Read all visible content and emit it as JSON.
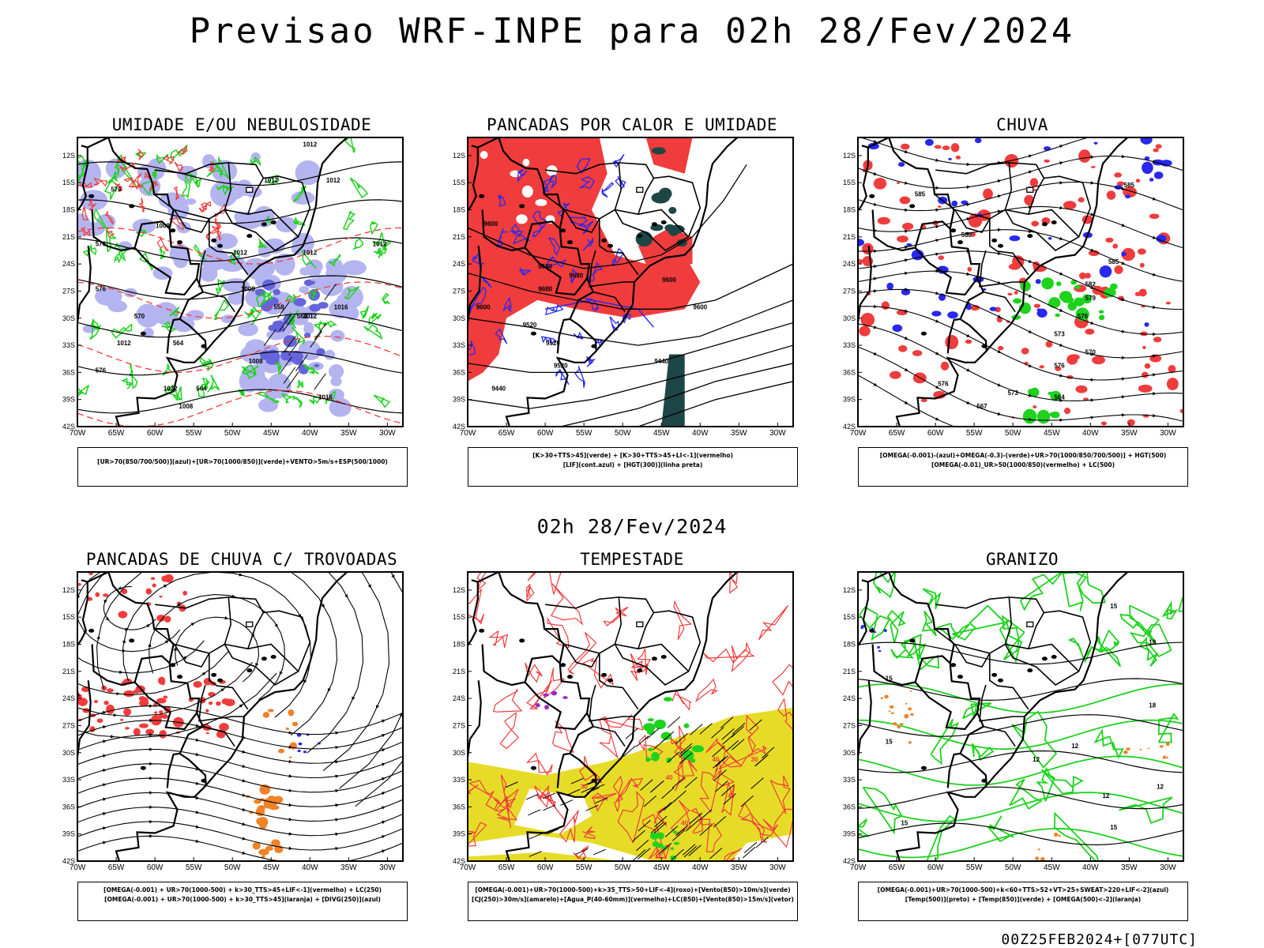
{
  "title": "Previsao WRF-INPE  para 02h 28/Fev/2024",
  "mid_title": "02h 28/Fev/2024",
  "footer": "00Z25FEB2024+[077UTC]",
  "axes": {
    "lon_labels": [
      "70W",
      "65W",
      "60W",
      "55W",
      "50W",
      "45W",
      "40W",
      "35W",
      "30W"
    ],
    "lat_labels": [
      "12S",
      "15S",
      "18S",
      "21S",
      "24S",
      "27S",
      "30S",
      "33S",
      "36S",
      "39S",
      "42S"
    ]
  },
  "colors": {
    "humidity_blue": "#b4b4f0",
    "humidity_blue_dark": "#6464dc",
    "green": "#1ed21e",
    "red": "#f03c3c",
    "blue": "#2828f0",
    "dark_teal": "#1e4646",
    "orange": "#f08228",
    "yellow": "#e6dc28",
    "purple": "#a028c8"
  },
  "panels": [
    {
      "title": "UMIDADE E/OU NEBULOSIDADE",
      "legend": [
        "[UR>70(850/700/500)](azul)+[UR>70(1000/850)](verde)+VENTO>5m/s+ESP(500/1000)"
      ],
      "contour_labels": [
        "1012",
        "1012",
        "1012",
        "1008",
        "1012",
        "1012",
        "1012",
        "1008",
        "1016",
        "1012",
        "1012",
        "1008",
        "1012",
        "1016",
        "1008",
        "576",
        "576",
        "576",
        "570",
        "564",
        "558",
        "564",
        "576",
        "564"
      ]
    },
    {
      "title": "PANCADAS POR CALOR E UMIDADE",
      "legend": [
        "[K>30+TTS>45](verde) + [K>30+TTS>45+LI<-1](vermelho)",
        "[LIF](cont.azul) + [HGT(300)](linha preta)"
      ],
      "contour_labels": [
        "9600",
        "9680",
        "9680",
        "9600",
        "9520",
        "9600",
        "9520",
        "9440",
        "9520",
        "9440",
        "9600",
        "9680"
      ]
    },
    {
      "title": "CHUVA",
      "legend": [
        "[OMEGA(-0.001)-(azul)+OMEGA(-0.3)-(verde)+UR>70(1000/850/700/500)] + HGT(500)",
        "[OMEGA(-0.01)_UR>50(1000/850)(vermelho) + LC(500)"
      ],
      "contour_labels": [
        "585",
        "585",
        "588",
        "585",
        "582",
        "579",
        "576",
        "573",
        "570",
        "576",
        "576",
        "573",
        "564",
        "567"
      ]
    },
    {
      "title": "PANCADAS DE CHUVA C/ TROVOADAS",
      "legend": [
        "[OMEGA(-0.001) + UR>70(1000-500) + k>30_TTS>45+LIF<-1](vermelho) + LC(250)",
        "[OMEGA(-0.001) + UR>70(1000-500) + k>30_TTS>45](laranja) + [DIVG(250)](azul)"
      ],
      "contour_labels": []
    },
    {
      "title": "TEMPESTADE",
      "legend": [
        "[OMEGA(-0.001)+UR>70(1000-500)+k>35_TTS>50+LIF<-4](roxo)+[Vento(850)>10m/s](verde)",
        "[CJ(250)>30m/s](amarelo)+[Agua_P(40-60mm)](vermelho)+LC(850)+[Vento(850)>15m/s](vetor)"
      ],
      "contour_labels": [
        "40",
        "40",
        "40",
        "30",
        "30",
        "40"
      ]
    },
    {
      "title": "GRANIZO",
      "legend": [
        "[OMEGA(-0.001)+UR>70(1000-500)+k<60+TTS>52+VT>25+SWEAT>220+LIF<-2](azul)",
        "[Temp(500)](preto) + [Temp(850)](verde) + [OMEGA(500)<-2](laranja)"
      ],
      "contour_labels": [
        "15",
        "18",
        "15",
        "18",
        "15",
        "12",
        "12",
        "12",
        "12",
        "15",
        "15"
      ]
    }
  ]
}
